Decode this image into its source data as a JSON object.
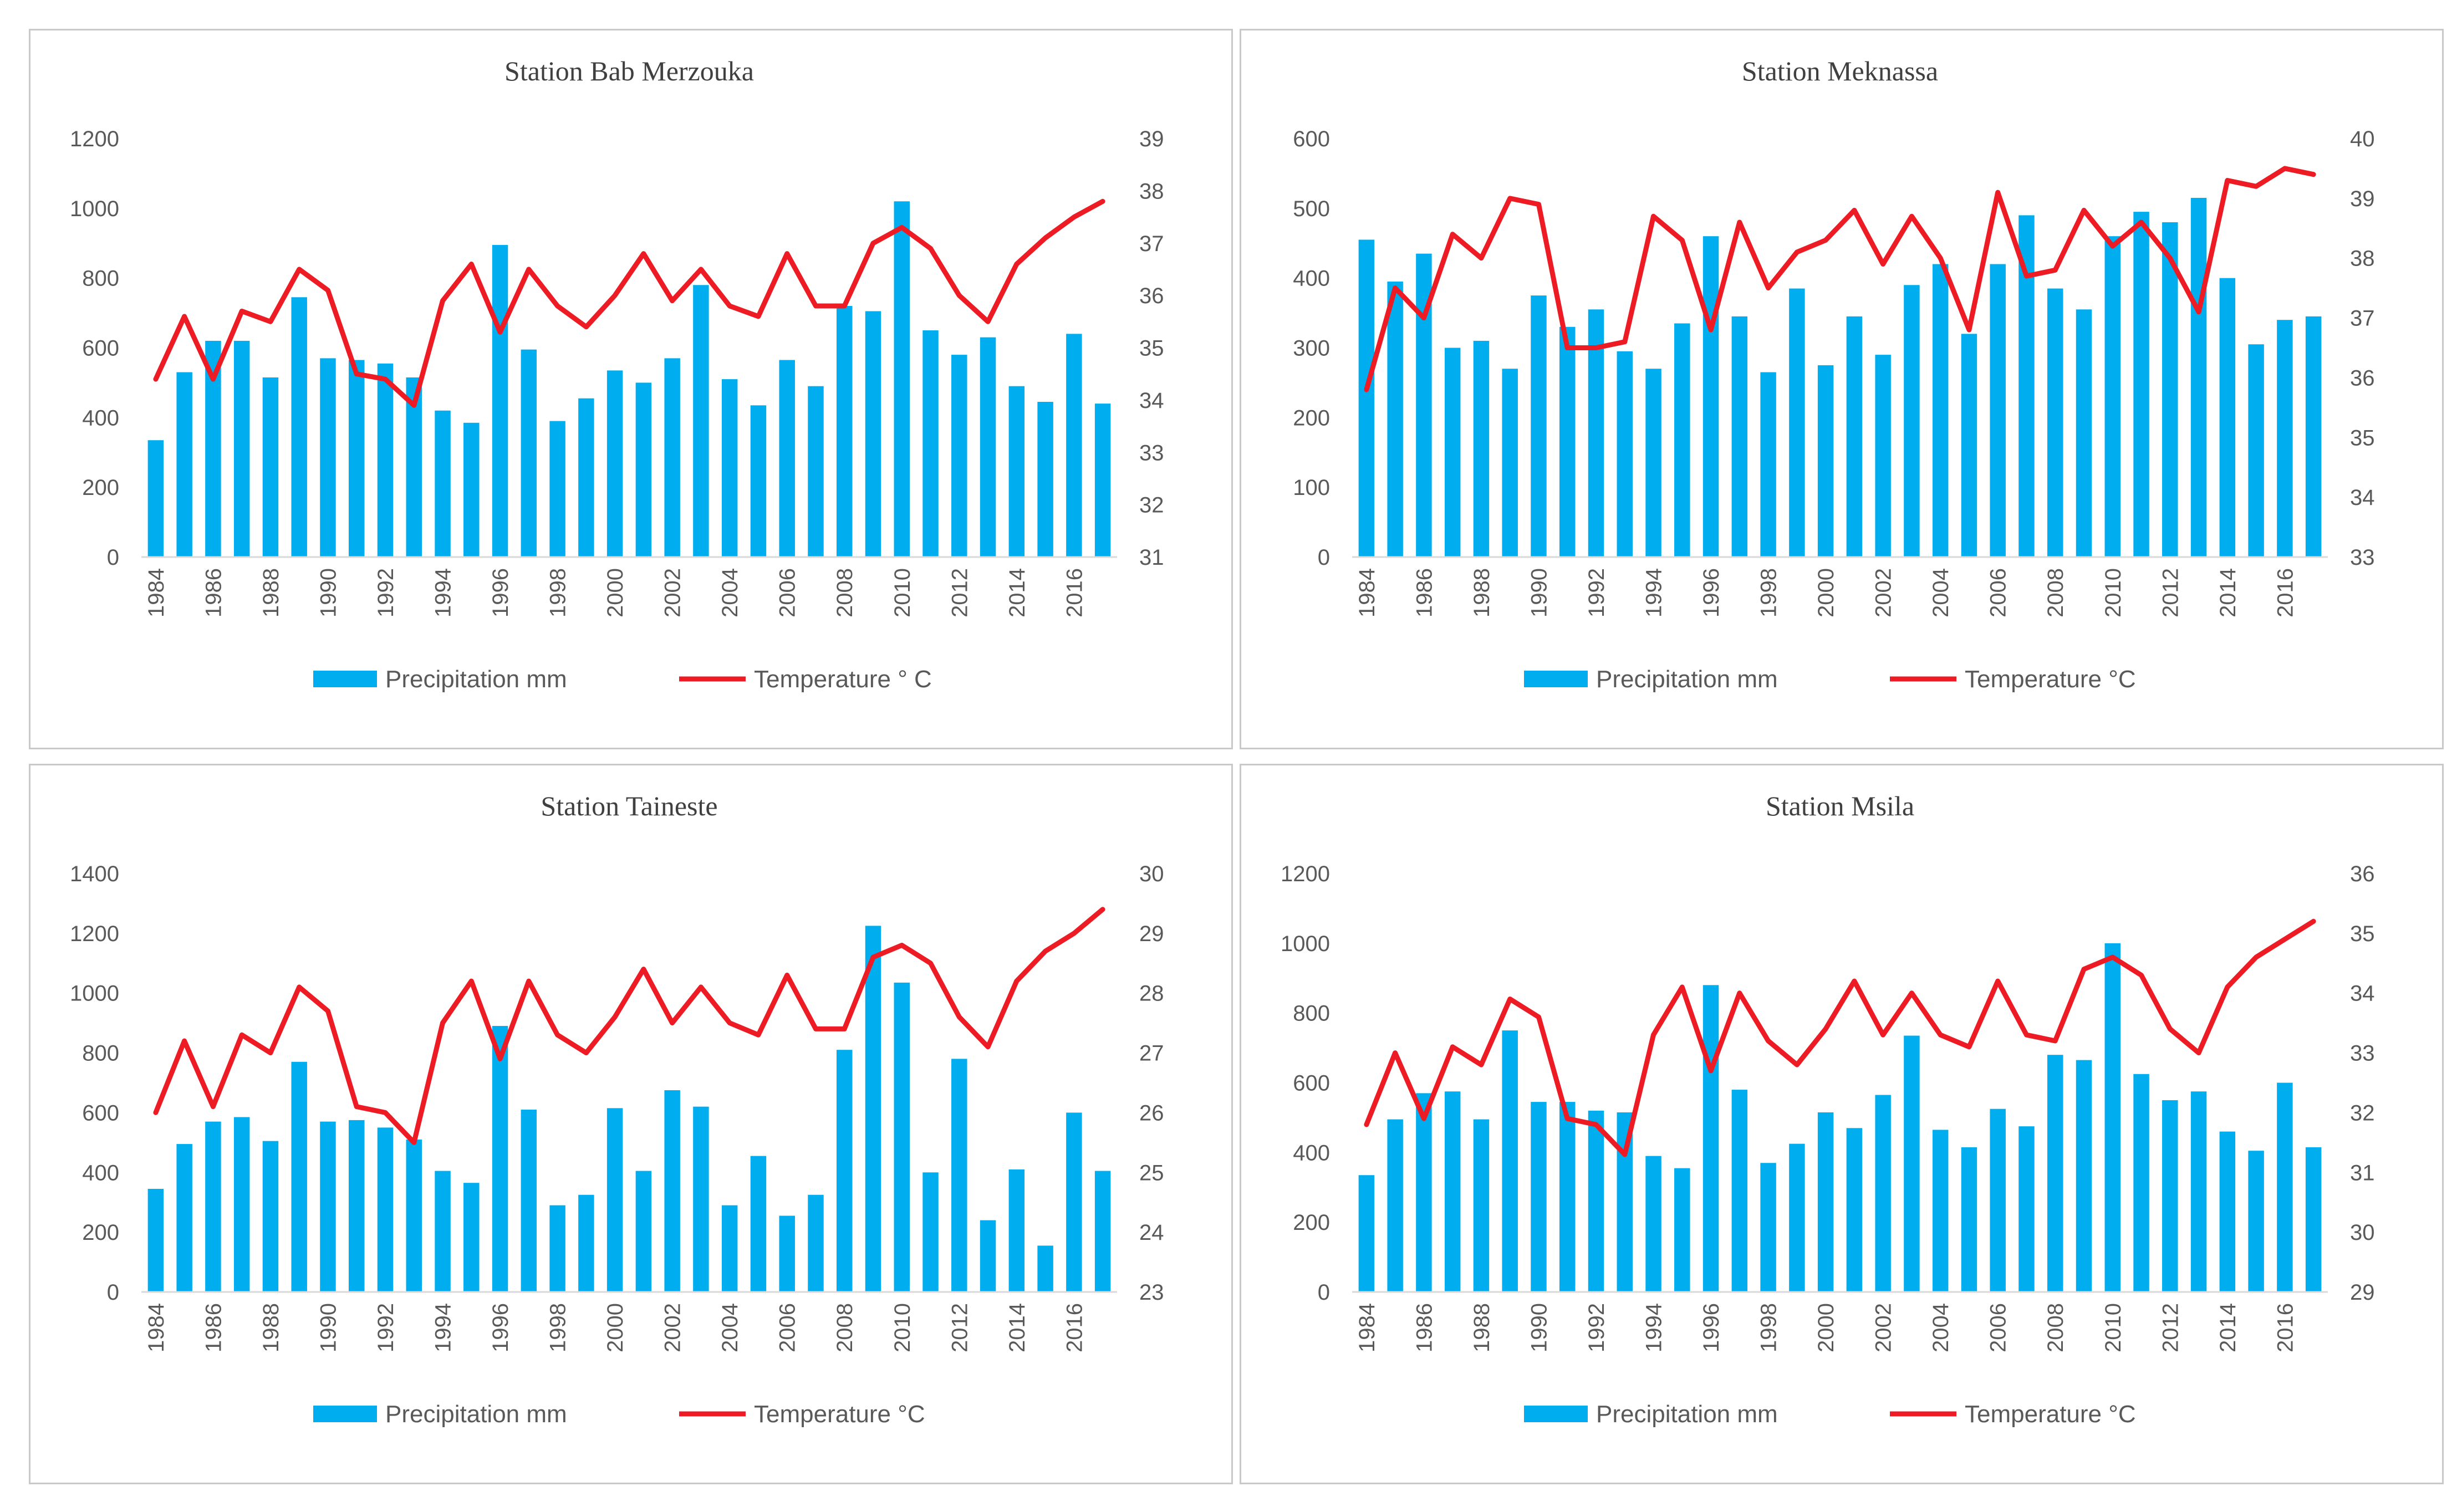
{
  "colors": {
    "bar": "#00AEEF",
    "line": "#ED1C24",
    "axis": "#595959",
    "border": "#C9C9C9"
  },
  "chart_data": [
    {
      "type": "bar+line",
      "title": "Station Bab Merzouka",
      "legend": {
        "bar": "Precipitation mm",
        "line": "Temperature ° C",
        "placement": "bottom"
      },
      "years": [
        1984,
        1985,
        1986,
        1987,
        1988,
        1989,
        1990,
        1991,
        1992,
        1993,
        1994,
        1995,
        1996,
        1997,
        1998,
        1999,
        2000,
        2001,
        2002,
        2003,
        2004,
        2005,
        2006,
        2007,
        2008,
        2009,
        2010,
        2011,
        2012,
        2013,
        2014,
        2015,
        2016,
        2017
      ],
      "x_tick_labels": [
        "1984",
        "1986",
        "1988",
        "1990",
        "1992",
        "1994",
        "1996",
        "1998",
        "2000",
        "2002",
        "2004",
        "2006",
        "2008",
        "2010",
        "2012",
        "2014",
        "2016"
      ],
      "precipitation": [
        335,
        530,
        620,
        620,
        515,
        745,
        570,
        565,
        555,
        515,
        420,
        385,
        895,
        595,
        390,
        455,
        535,
        500,
        570,
        780,
        510,
        435,
        565,
        490,
        720,
        705,
        1020,
        650,
        580,
        630,
        490,
        445,
        640,
        440
      ],
      "temperature": [
        34.4,
        35.6,
        34.4,
        35.7,
        35.5,
        36.5,
        36.1,
        34.5,
        34.4,
        33.9,
        35.9,
        36.6,
        35.3,
        36.5,
        35.8,
        35.4,
        36.0,
        36.8,
        35.9,
        36.5,
        35.8,
        35.6,
        36.8,
        35.8,
        35.8,
        37.0,
        37.3,
        36.9,
        36.0,
        35.5,
        36.6,
        37.1,
        37.5,
        37.8
      ],
      "y_left": {
        "min": 0,
        "max": 1200,
        "step": 200,
        "ticks": [
          "0",
          "200",
          "400",
          "600",
          "800",
          "1000",
          "1200"
        ]
      },
      "y_right": {
        "min": 31,
        "max": 39,
        "step": 1,
        "ticks": [
          "31",
          "32",
          "33",
          "34",
          "35",
          "36",
          "37",
          "38",
          "39"
        ]
      }
    },
    {
      "type": "bar+line",
      "title": "Station Meknassa",
      "legend": {
        "bar": "Precipitation mm",
        "line": "Temperature °C",
        "placement": "bottom"
      },
      "years": [
        1984,
        1985,
        1986,
        1987,
        1988,
        1989,
        1990,
        1991,
        1992,
        1993,
        1994,
        1995,
        1996,
        1997,
        1998,
        1999,
        2000,
        2001,
        2002,
        2003,
        2004,
        2005,
        2006,
        2007,
        2008,
        2009,
        2010,
        2011,
        2012,
        2013,
        2014,
        2015,
        2016,
        2017
      ],
      "x_tick_labels": [
        "1984",
        "1986",
        "1988",
        "1990",
        "1992",
        "1994",
        "1996",
        "1998",
        "2000",
        "2002",
        "2004",
        "2006",
        "2008",
        "2010",
        "2012",
        "2014",
        "2016"
      ],
      "precipitation": [
        455,
        395,
        435,
        300,
        310,
        270,
        375,
        330,
        355,
        295,
        270,
        335,
        460,
        345,
        265,
        385,
        275,
        345,
        290,
        390,
        420,
        320,
        420,
        490,
        385,
        355,
        460,
        495,
        480,
        515,
        400,
        305,
        340,
        345
      ],
      "temperature": [
        35.8,
        37.5,
        37.0,
        38.4,
        38.0,
        39.0,
        38.9,
        36.5,
        36.5,
        36.6,
        38.7,
        38.3,
        36.8,
        38.6,
        37.5,
        38.1,
        38.3,
        38.8,
        37.9,
        38.7,
        38.0,
        36.8,
        39.1,
        37.7,
        37.8,
        38.8,
        38.2,
        38.6,
        38.0,
        37.1,
        39.3,
        39.2,
        39.5,
        39.4
      ],
      "y_left": {
        "min": 0,
        "max": 600,
        "step": 100,
        "ticks": [
          "0",
          "100",
          "200",
          "300",
          "400",
          "500",
          "600"
        ]
      },
      "y_right": {
        "min": 33,
        "max": 40,
        "step": 1,
        "ticks": [
          "33",
          "34",
          "35",
          "36",
          "37",
          "38",
          "39",
          "40"
        ]
      }
    },
    {
      "type": "bar+line",
      "title": "Station Taineste",
      "legend": {
        "bar": "Precipitation mm",
        "line": "Temperature °C",
        "placement": "bottom"
      },
      "years": [
        1984,
        1985,
        1986,
        1987,
        1988,
        1989,
        1990,
        1991,
        1992,
        1993,
        1994,
        1995,
        1996,
        1997,
        1998,
        1999,
        2000,
        2001,
        2002,
        2003,
        2004,
        2005,
        2006,
        2007,
        2008,
        2009,
        2010,
        2011,
        2012,
        2013,
        2014,
        2015,
        2016,
        2017
      ],
      "x_tick_labels": [
        "1984",
        "1986",
        "1988",
        "1990",
        "1992",
        "1994",
        "1996",
        "1998",
        "2000",
        "2002",
        "2004",
        "2006",
        "2008",
        "2010",
        "2012",
        "2014",
        "2016"
      ],
      "precipitation": [
        345,
        495,
        570,
        585,
        505,
        770,
        570,
        575,
        550,
        510,
        405,
        365,
        890,
        610,
        290,
        325,
        615,
        405,
        675,
        620,
        290,
        455,
        255,
        325,
        810,
        1225,
        1035,
        400,
        780,
        240,
        410,
        155,
        600,
        405
      ],
      "temperature": [
        26.0,
        27.2,
        26.1,
        27.3,
        27.0,
        28.1,
        27.7,
        26.1,
        26.0,
        25.5,
        27.5,
        28.2,
        26.9,
        28.2,
        27.3,
        27.0,
        27.6,
        28.4,
        27.5,
        28.1,
        27.5,
        27.3,
        28.3,
        27.4,
        27.4,
        28.6,
        28.8,
        28.5,
        27.6,
        27.1,
        28.2,
        28.7,
        29.0,
        29.4
      ],
      "y_left": {
        "min": 0,
        "max": 1400,
        "step": 200,
        "ticks": [
          "0",
          "200",
          "400",
          "600",
          "800",
          "1000",
          "1200",
          "1400"
        ]
      },
      "y_right": {
        "min": 23,
        "max": 30,
        "step": 1,
        "ticks": [
          "23",
          "24",
          "25",
          "26",
          "27",
          "28",
          "29",
          "30"
        ]
      }
    },
    {
      "type": "bar+line",
      "title": "Station Msila",
      "legend": {
        "bar": "Precipitation mm",
        "line": "Temperature °C",
        "placement": "bottom"
      },
      "years": [
        1984,
        1985,
        1986,
        1987,
        1988,
        1989,
        1990,
        1991,
        1992,
        1993,
        1994,
        1995,
        1996,
        1997,
        1998,
        1999,
        2000,
        2001,
        2002,
        2003,
        2004,
        2005,
        2006,
        2007,
        2008,
        2009,
        2010,
        2011,
        2012,
        2013,
        2014,
        2015,
        2016,
        2017
      ],
      "x_tick_labels": [
        "1984",
        "1986",
        "1988",
        "1990",
        "1992",
        "1994",
        "1996",
        "1998",
        "2000",
        "2002",
        "2004",
        "2006",
        "2008",
        "2010",
        "2012",
        "2014",
        "2016"
      ],
      "precipitation": [
        335,
        495,
        570,
        575,
        495,
        750,
        545,
        545,
        520,
        515,
        390,
        355,
        880,
        580,
        370,
        425,
        515,
        470,
        565,
        735,
        465,
        415,
        525,
        475,
        680,
        665,
        1000,
        625,
        550,
        575,
        460,
        405,
        600,
        415
      ],
      "temperature": [
        31.8,
        33.0,
        31.9,
        33.1,
        32.8,
        33.9,
        33.6,
        31.9,
        31.8,
        31.3,
        33.3,
        34.1,
        32.7,
        34.0,
        33.2,
        32.8,
        33.4,
        34.2,
        33.3,
        34.0,
        33.3,
        33.1,
        34.2,
        33.3,
        33.2,
        34.4,
        34.6,
        34.3,
        33.4,
        33.0,
        34.1,
        34.6,
        34.9,
        35.2
      ],
      "y_left": {
        "min": 0,
        "max": 1200,
        "step": 200,
        "ticks": [
          "0",
          "200",
          "400",
          "600",
          "800",
          "1000",
          "1200"
        ]
      },
      "y_right": {
        "min": 29,
        "max": 36,
        "step": 1,
        "ticks": [
          "29",
          "30",
          "31",
          "32",
          "33",
          "34",
          "35",
          "36"
        ]
      }
    }
  ]
}
